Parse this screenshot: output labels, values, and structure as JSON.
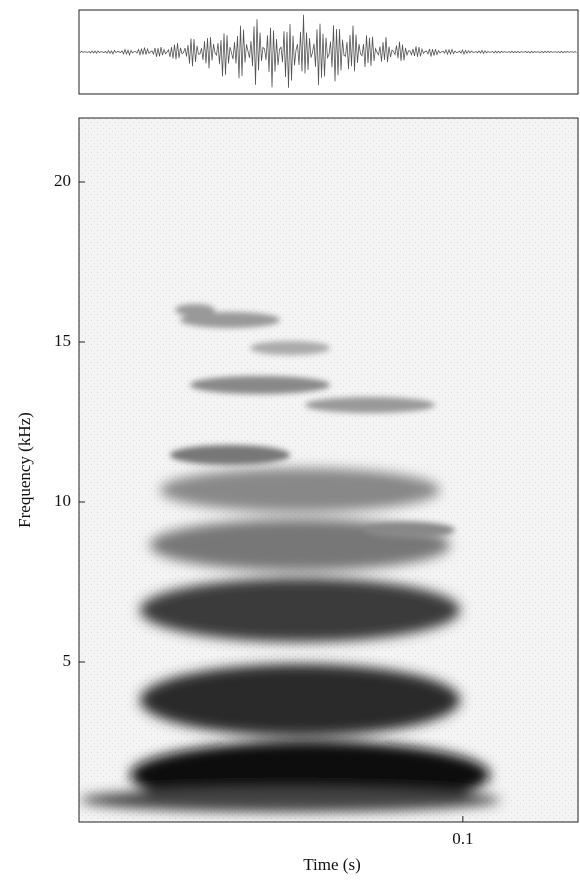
{
  "chart_data": {
    "type": "spectrogram",
    "xlabel": "Time (s)",
    "ylabel": "Frequency (kHz)",
    "xlim": [
      0,
      0.13
    ],
    "xticks": [
      0.1
    ],
    "ylim": [
      0,
      22
    ],
    "yticks": [
      5,
      10,
      15,
      20
    ]
  }
}
